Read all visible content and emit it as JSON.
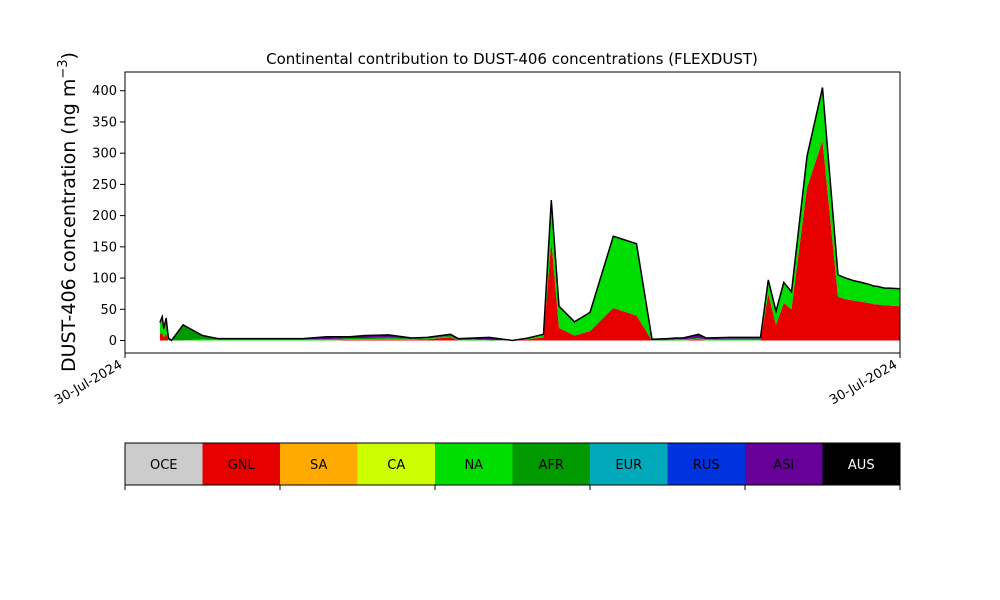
{
  "chart_data": {
    "type": "area",
    "title": "Continental contribution to DUST-406 concentrations (FLEXDUST)",
    "ylabel": "DUST-406 concentration (ng m",
    "ylabel_sup": "−3",
    "ylabel_close": ")",
    "ylim": [
      -20,
      430
    ],
    "yticks": [
      0,
      50,
      100,
      150,
      200,
      250,
      300,
      350,
      400
    ],
    "xlim": [
      0,
      100
    ],
    "xtick_labels": [
      "30-Jul-2024",
      "30-Jul-2024"
    ],
    "grid": false,
    "x": [
      4.5,
      4.8,
      5.0,
      5.3,
      5.6,
      6.0,
      7.5,
      10.0,
      12.0,
      14.0,
      17.0,
      20.0,
      23.0,
      26.0,
      29.0,
      31.0,
      34.0,
      37.0,
      39.0,
      42.0,
      43.0,
      45.0,
      47.0,
      50.0,
      52.0,
      54.0,
      55.0,
      56.0,
      58.0,
      60.0,
      63.0,
      66.0,
      68.0,
      70.0,
      71.0,
      72.0,
      74.0,
      75.0,
      78.0,
      82.0,
      83.0,
      84.0,
      85.0,
      86.0,
      88.0,
      90.0,
      92.0,
      93.0,
      94.0,
      95.0,
      96.0,
      96.7,
      97.0,
      98.0,
      98.5,
      100.0
    ],
    "series": [
      {
        "name": "OCE",
        "color": "#cccccc",
        "values": [
          0,
          0,
          0,
          0,
          0,
          0,
          0,
          0,
          0,
          0,
          0,
          0,
          0,
          0,
          0,
          0,
          0,
          0,
          0,
          0,
          0,
          0,
          0,
          0,
          0,
          0,
          0,
          0,
          0,
          0,
          0,
          0,
          0,
          0,
          0,
          0,
          0,
          0,
          0,
          0,
          0,
          0,
          0,
          0,
          0,
          0,
          0,
          0,
          0,
          0,
          0,
          0,
          0,
          0,
          0,
          0
        ]
      },
      {
        "name": "GNL",
        "color": "#e60000",
        "values": [
          10,
          12,
          5,
          10,
          0,
          0,
          0,
          0,
          0,
          0,
          0,
          0,
          0,
          0,
          1,
          1,
          1,
          1,
          2,
          5,
          0,
          0,
          0,
          0,
          2,
          5,
          160,
          20,
          8,
          15,
          52,
          40,
          0,
          0,
          0,
          0,
          2,
          0,
          0,
          0,
          75,
          25,
          60,
          50,
          245,
          320,
          70,
          66,
          64,
          62,
          60,
          58,
          58,
          56,
          56,
          55
        ]
      },
      {
        "name": "SA",
        "color": "#ffaa00",
        "values": [
          0,
          0,
          0,
          0,
          0,
          0,
          0,
          0,
          0,
          0,
          0,
          0,
          0,
          0,
          0,
          0,
          0,
          0,
          0,
          0,
          0,
          0,
          0,
          0,
          0,
          0,
          0,
          0,
          0,
          0,
          0,
          0,
          0,
          0,
          0,
          0,
          0,
          0,
          0,
          0,
          0,
          0,
          0,
          0,
          0,
          0,
          0,
          0,
          0,
          0,
          0,
          0,
          0,
          0,
          0,
          0
        ]
      },
      {
        "name": "CA",
        "color": "#ccff00",
        "values": [
          0,
          0,
          0,
          0,
          0,
          0,
          0,
          0,
          0,
          0,
          0,
          0,
          0,
          0,
          0,
          0,
          0,
          0,
          0,
          0,
          0,
          0,
          0,
          0,
          0,
          0,
          0,
          0,
          0,
          0,
          0,
          0,
          0,
          0,
          0,
          0,
          0,
          0,
          0,
          0,
          0,
          0,
          0,
          0,
          0,
          0,
          0,
          0,
          0,
          0,
          0,
          0,
          0,
          0,
          0,
          0
        ]
      },
      {
        "name": "NA",
        "color": "#00dd00",
        "values": [
          15,
          20,
          10,
          20,
          3,
          0,
          0,
          2,
          1,
          1,
          1,
          1,
          1,
          1,
          1,
          1,
          2,
          1,
          1,
          1,
          0,
          1,
          0,
          0,
          2,
          5,
          65,
          35,
          22,
          30,
          115,
          115,
          0,
          0,
          1,
          1,
          1,
          1,
          1,
          1,
          22,
          22,
          33,
          28,
          50,
          85,
          35,
          34,
          32,
          31,
          30,
          29,
          29,
          28,
          28,
          28
        ]
      },
      {
        "name": "AFR",
        "color": "#009900",
        "values": [
          2,
          3,
          2,
          3,
          1,
          0,
          25,
          5,
          1,
          1,
          1,
          1,
          1,
          1,
          2,
          2,
          2,
          1,
          1,
          2,
          1,
          1,
          1,
          0,
          0,
          0,
          0,
          0,
          0,
          0,
          0,
          0,
          1,
          1,
          1,
          1,
          1,
          1,
          2,
          2,
          0,
          0,
          0,
          0,
          0,
          0,
          0,
          0,
          0,
          0,
          0,
          0,
          0,
          0,
          0,
          0
        ]
      },
      {
        "name": "EUR",
        "color": "#00aabb",
        "values": [
          0,
          0,
          0,
          0,
          0,
          0,
          0,
          0,
          0,
          0,
          0,
          0,
          0,
          0,
          0,
          0,
          0,
          0,
          0,
          0,
          0,
          0,
          0,
          0,
          0,
          0,
          0,
          0,
          0,
          0,
          0,
          0,
          0,
          0,
          0,
          0,
          0,
          0,
          0,
          0,
          0,
          0,
          0,
          0,
          0,
          0,
          0,
          0,
          0,
          0,
          0,
          0,
          0,
          0,
          0,
          0
        ]
      },
      {
        "name": "RUS",
        "color": "#0033dd",
        "values": [
          0,
          0,
          0,
          0,
          0,
          0,
          0,
          0,
          0,
          0,
          0,
          0,
          0,
          0,
          0,
          0,
          0,
          0,
          0,
          0,
          0,
          0,
          0,
          0,
          0,
          0,
          0,
          0,
          0,
          0,
          0,
          0,
          0,
          0,
          0,
          0,
          0,
          0,
          0,
          0,
          0,
          0,
          0,
          0,
          0,
          0,
          0,
          0,
          0,
          0,
          0,
          0,
          0,
          0,
          0,
          0
        ]
      },
      {
        "name": "ASI",
        "color": "#660099",
        "values": [
          2,
          3,
          2,
          3,
          0,
          0,
          0,
          1,
          1,
          1,
          1,
          1,
          1,
          4,
          2,
          4,
          4,
          1,
          1,
          2,
          2,
          2,
          4,
          0,
          0,
          0,
          0,
          0,
          0,
          0,
          0,
          0,
          1,
          2,
          2,
          2,
          6,
          2,
          2,
          2,
          0,
          0,
          0,
          0,
          0,
          0,
          0,
          0,
          0,
          0,
          0,
          0,
          0,
          0,
          0,
          0
        ]
      },
      {
        "name": "AUS",
        "color": "#000000",
        "values": [
          0,
          0,
          0,
          0,
          0,
          0,
          0,
          0,
          0,
          0,
          0,
          0,
          0,
          0,
          0,
          0,
          0,
          0,
          0,
          0,
          0,
          0,
          0,
          0,
          0,
          0,
          0,
          0,
          0,
          0,
          0,
          0,
          0,
          0,
          0,
          0,
          0,
          0,
          0,
          0,
          0,
          0,
          0,
          0,
          0,
          0,
          0,
          0,
          0,
          0,
          0,
          0,
          0,
          0,
          0,
          0
        ]
      }
    ],
    "legend_placement": "bottom"
  }
}
